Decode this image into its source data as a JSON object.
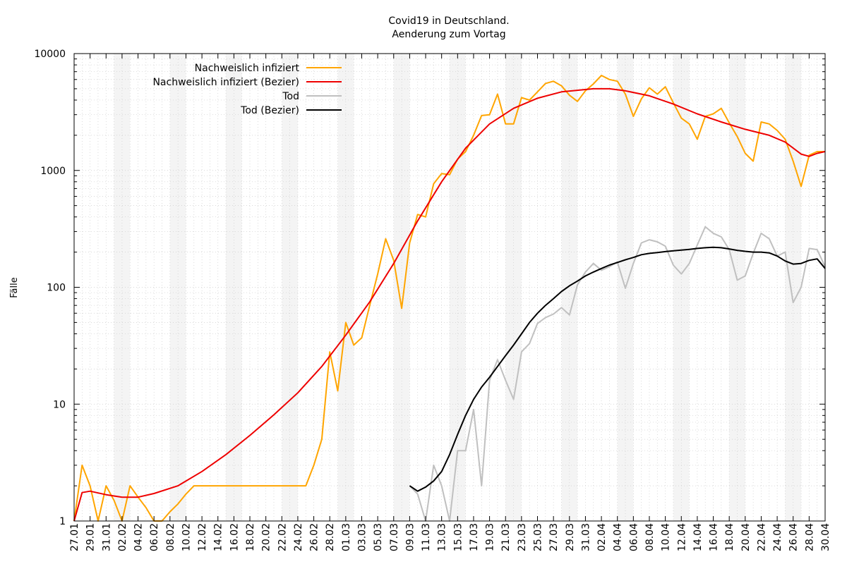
{
  "chart_data": {
    "type": "line",
    "title": "Covid19 in Deutschland.",
    "subtitle": "Aenderung zum Vortag",
    "ylabel": "Fälle",
    "yscale": "log",
    "ylim": [
      1,
      10000
    ],
    "ytick_labels": [
      "1",
      "10",
      "100",
      "1000",
      "10000"
    ],
    "x_start": "2020-01-27",
    "x_end": "2020-04-30",
    "xtick_labels": [
      "27.01",
      "29.01",
      "31.01",
      "02.02",
      "04.02",
      "06.02",
      "08.02",
      "10.02",
      "12.02",
      "14.02",
      "16.02",
      "18.02",
      "20.02",
      "22.02",
      "24.02",
      "26.02",
      "28.02",
      "01.03",
      "03.03",
      "05.03",
      "07.03",
      "09.03",
      "11.03",
      "13.03",
      "15.03",
      "17.03",
      "19.03",
      "21.03",
      "23.03",
      "25.03",
      "27.03",
      "29.03",
      "31.03",
      "02.04",
      "04.04",
      "06.04",
      "08.04",
      "10.04",
      "12.04",
      "14.04",
      "16.04",
      "18.04",
      "20.04",
      "22.04",
      "24.04",
      "26.04",
      "28.04",
      "30.04"
    ],
    "weekend_shading": true,
    "grid": true,
    "legend_position": "top-left",
    "series": [
      {
        "name": "Nachweislich infiziert",
        "color": "#ffa500",
        "points": [
          [
            "2020-01-27",
            1
          ],
          [
            "2020-01-28",
            3
          ],
          [
            "2020-01-29",
            2
          ],
          [
            "2020-01-30",
            1
          ],
          [
            "2020-01-31",
            2
          ],
          [
            "2020-02-01",
            1.5
          ],
          [
            "2020-02-02",
            1
          ],
          [
            "2020-02-03",
            2
          ],
          [
            "2020-02-04",
            1.6
          ],
          [
            "2020-02-05",
            1.3
          ],
          [
            "2020-02-06",
            1
          ],
          [
            "2020-02-07",
            1
          ],
          [
            "2020-02-08",
            1.2
          ],
          [
            "2020-02-09",
            1.4
          ],
          [
            "2020-02-10",
            1.7
          ],
          [
            "2020-02-11",
            2
          ],
          [
            "2020-02-12",
            2
          ],
          [
            "2020-02-13",
            2
          ],
          [
            "2020-02-14",
            2
          ],
          [
            "2020-02-15",
            2
          ],
          [
            "2020-02-16",
            2
          ],
          [
            "2020-02-17",
            2
          ],
          [
            "2020-02-18",
            2
          ],
          [
            "2020-02-19",
            2
          ],
          [
            "2020-02-20",
            2
          ],
          [
            "2020-02-21",
            2
          ],
          [
            "2020-02-22",
            2
          ],
          [
            "2020-02-23",
            2
          ],
          [
            "2020-02-24",
            2
          ],
          [
            "2020-02-25",
            2
          ],
          [
            "2020-02-26",
            3
          ],
          [
            "2020-02-27",
            5
          ],
          [
            "2020-02-28",
            28
          ],
          [
            "2020-02-29",
            13
          ],
          [
            "2020-03-01",
            50
          ],
          [
            "2020-03-02",
            32
          ],
          [
            "2020-03-03",
            37
          ],
          [
            "2020-03-04",
            70
          ],
          [
            "2020-03-05",
            130
          ],
          [
            "2020-03-06",
            260
          ],
          [
            "2020-03-07",
            170
          ],
          [
            "2020-03-08",
            66
          ],
          [
            "2020-03-09",
            240
          ],
          [
            "2020-03-10",
            420
          ],
          [
            "2020-03-11",
            400
          ],
          [
            "2020-03-12",
            770
          ],
          [
            "2020-03-13",
            940
          ],
          [
            "2020-03-14",
            920
          ],
          [
            "2020-03-15",
            1250
          ],
          [
            "2020-03-16",
            1450
          ],
          [
            "2020-03-17",
            2000
          ],
          [
            "2020-03-18",
            2950
          ],
          [
            "2020-03-19",
            3000
          ],
          [
            "2020-03-20",
            4500
          ],
          [
            "2020-03-21",
            2500
          ],
          [
            "2020-03-22",
            2500
          ],
          [
            "2020-03-23",
            4200
          ],
          [
            "2020-03-24",
            4000
          ],
          [
            "2020-03-25",
            4700
          ],
          [
            "2020-03-26",
            5550
          ],
          [
            "2020-03-27",
            5800
          ],
          [
            "2020-03-28",
            5300
          ],
          [
            "2020-03-29",
            4400
          ],
          [
            "2020-03-30",
            3900
          ],
          [
            "2020-03-31",
            4800
          ],
          [
            "2020-04-01",
            5500
          ],
          [
            "2020-04-02",
            6500
          ],
          [
            "2020-04-03",
            6000
          ],
          [
            "2020-04-04",
            5800
          ],
          [
            "2020-04-05",
            4500
          ],
          [
            "2020-04-06",
            2900
          ],
          [
            "2020-04-07",
            4100
          ],
          [
            "2020-04-08",
            5100
          ],
          [
            "2020-04-09",
            4500
          ],
          [
            "2020-04-10",
            5200
          ],
          [
            "2020-04-11",
            3800
          ],
          [
            "2020-04-12",
            2800
          ],
          [
            "2020-04-13",
            2500
          ],
          [
            "2020-04-14",
            1850
          ],
          [
            "2020-04-15",
            2900
          ],
          [
            "2020-04-16",
            3050
          ],
          [
            "2020-04-17",
            3400
          ],
          [
            "2020-04-18",
            2550
          ],
          [
            "2020-04-19",
            1950
          ],
          [
            "2020-04-20",
            1400
          ],
          [
            "2020-04-21",
            1200
          ],
          [
            "2020-04-22",
            2600
          ],
          [
            "2020-04-23",
            2500
          ],
          [
            "2020-04-24",
            2200
          ],
          [
            "2020-04-25",
            1850
          ],
          [
            "2020-04-26",
            1200
          ],
          [
            "2020-04-27",
            730
          ],
          [
            "2020-04-28",
            1350
          ],
          [
            "2020-04-29",
            1450
          ],
          [
            "2020-04-30",
            1450
          ]
        ]
      },
      {
        "name": "Nachweislich infiziert (Bezier)",
        "color": "#ee0000",
        "points": [
          [
            "2020-01-27",
            1
          ],
          [
            "2020-01-28",
            1.75
          ],
          [
            "2020-01-29",
            1.8
          ],
          [
            "2020-01-31",
            1.68
          ],
          [
            "2020-02-02",
            1.6
          ],
          [
            "2020-02-04",
            1.6
          ],
          [
            "2020-02-06",
            1.72
          ],
          [
            "2020-02-09",
            2
          ],
          [
            "2020-02-12",
            2.65
          ],
          [
            "2020-02-15",
            3.7
          ],
          [
            "2020-02-18",
            5.4
          ],
          [
            "2020-02-21",
            8.1
          ],
          [
            "2020-02-24",
            12.5
          ],
          [
            "2020-02-27",
            21
          ],
          [
            "2020-03-01",
            39
          ],
          [
            "2020-03-04",
            75
          ],
          [
            "2020-03-07",
            160
          ],
          [
            "2020-03-10",
            370
          ],
          [
            "2020-03-13",
            800
          ],
          [
            "2020-03-16",
            1550
          ],
          [
            "2020-03-19",
            2500
          ],
          [
            "2020-03-22",
            3400
          ],
          [
            "2020-03-25",
            4150
          ],
          [
            "2020-03-28",
            4700
          ],
          [
            "2020-04-01",
            5000
          ],
          [
            "2020-04-03",
            5000
          ],
          [
            "2020-04-05",
            4800
          ],
          [
            "2020-04-08",
            4350
          ],
          [
            "2020-04-11",
            3700
          ],
          [
            "2020-04-14",
            3050
          ],
          [
            "2020-04-17",
            2600
          ],
          [
            "2020-04-20",
            2250
          ],
          [
            "2020-04-23",
            2000
          ],
          [
            "2020-04-25",
            1750
          ],
          [
            "2020-04-27",
            1380
          ],
          [
            "2020-04-28",
            1320
          ],
          [
            "2020-04-29",
            1400
          ],
          [
            "2020-04-30",
            1450
          ]
        ]
      },
      {
        "name": "Tod",
        "color": "#c0c0c0",
        "points": [
          [
            "2020-03-09",
            2
          ],
          [
            "2020-03-10",
            1.7
          ],
          [
            "2020-03-11",
            1
          ],
          [
            "2020-03-12",
            3
          ],
          [
            "2020-03-13",
            2
          ],
          [
            "2020-03-14",
            1
          ],
          [
            "2020-03-15",
            4
          ],
          [
            "2020-03-16",
            4
          ],
          [
            "2020-03-17",
            9
          ],
          [
            "2020-03-18",
            2
          ],
          [
            "2020-03-19",
            16
          ],
          [
            "2020-03-20",
            24
          ],
          [
            "2020-03-21",
            16
          ],
          [
            "2020-03-22",
            11
          ],
          [
            "2020-03-23",
            28
          ],
          [
            "2020-03-24",
            33
          ],
          [
            "2020-03-25",
            49
          ],
          [
            "2020-03-26",
            55
          ],
          [
            "2020-03-27",
            59
          ],
          [
            "2020-03-28",
            67
          ],
          [
            "2020-03-29",
            58
          ],
          [
            "2020-03-30",
            105
          ],
          [
            "2020-03-31",
            135
          ],
          [
            "2020-04-01",
            160
          ],
          [
            "2020-04-02",
            140
          ],
          [
            "2020-04-03",
            150
          ],
          [
            "2020-04-04",
            165
          ],
          [
            "2020-04-05",
            98
          ],
          [
            "2020-04-06",
            160
          ],
          [
            "2020-04-07",
            240
          ],
          [
            "2020-04-08",
            255
          ],
          [
            "2020-04-09",
            245
          ],
          [
            "2020-04-10",
            225
          ],
          [
            "2020-04-11",
            155
          ],
          [
            "2020-04-12",
            130
          ],
          [
            "2020-04-13",
            160
          ],
          [
            "2020-04-14",
            230
          ],
          [
            "2020-04-15",
            330
          ],
          [
            "2020-04-16",
            290
          ],
          [
            "2020-04-17",
            270
          ],
          [
            "2020-04-18",
            210
          ],
          [
            "2020-04-19",
            115
          ],
          [
            "2020-04-20",
            125
          ],
          [
            "2020-04-21",
            195
          ],
          [
            "2020-04-22",
            290
          ],
          [
            "2020-04-23",
            260
          ],
          [
            "2020-04-24",
            185
          ],
          [
            "2020-04-25",
            200
          ],
          [
            "2020-04-26",
            74
          ],
          [
            "2020-04-27",
            100
          ],
          [
            "2020-04-28",
            215
          ],
          [
            "2020-04-29",
            210
          ],
          [
            "2020-04-30",
            150
          ]
        ]
      },
      {
        "name": "Tod (Bezier)",
        "color": "#000000",
        "points": [
          [
            "2020-03-09",
            2
          ],
          [
            "2020-03-10",
            1.8
          ],
          [
            "2020-03-11",
            1.95
          ],
          [
            "2020-03-12",
            2.2
          ],
          [
            "2020-03-13",
            2.65
          ],
          [
            "2020-03-14",
            3.7
          ],
          [
            "2020-03-15",
            5.5
          ],
          [
            "2020-03-16",
            8
          ],
          [
            "2020-03-17",
            11
          ],
          [
            "2020-03-18",
            14
          ],
          [
            "2020-03-19",
            17
          ],
          [
            "2020-03-20",
            21
          ],
          [
            "2020-03-21",
            26
          ],
          [
            "2020-03-22",
            32
          ],
          [
            "2020-03-23",
            40
          ],
          [
            "2020-03-24",
            50
          ],
          [
            "2020-03-25",
            60
          ],
          [
            "2020-03-26",
            70
          ],
          [
            "2020-03-27",
            80
          ],
          [
            "2020-03-28",
            92
          ],
          [
            "2020-03-29",
            103
          ],
          [
            "2020-03-30",
            113
          ],
          [
            "2020-03-31",
            125
          ],
          [
            "2020-04-01",
            135
          ],
          [
            "2020-04-02",
            145
          ],
          [
            "2020-04-03",
            155
          ],
          [
            "2020-04-04",
            163
          ],
          [
            "2020-04-05",
            172
          ],
          [
            "2020-04-06",
            180
          ],
          [
            "2020-04-07",
            190
          ],
          [
            "2020-04-08",
            195
          ],
          [
            "2020-04-09",
            198
          ],
          [
            "2020-04-10",
            202
          ],
          [
            "2020-04-11",
            205
          ],
          [
            "2020-04-12",
            208
          ],
          [
            "2020-04-13",
            211
          ],
          [
            "2020-04-14",
            215
          ],
          [
            "2020-04-15",
            218
          ],
          [
            "2020-04-16",
            220
          ],
          [
            "2020-04-17",
            218
          ],
          [
            "2020-04-18",
            213
          ],
          [
            "2020-04-19",
            207
          ],
          [
            "2020-04-20",
            203
          ],
          [
            "2020-04-21",
            200
          ],
          [
            "2020-04-22",
            200
          ],
          [
            "2020-04-23",
            197
          ],
          [
            "2020-04-24",
            185
          ],
          [
            "2020-04-25",
            168
          ],
          [
            "2020-04-26",
            158
          ],
          [
            "2020-04-27",
            160
          ],
          [
            "2020-04-28",
            170
          ],
          [
            "2020-04-29",
            175
          ],
          [
            "2020-04-30",
            145
          ]
        ]
      }
    ]
  }
}
